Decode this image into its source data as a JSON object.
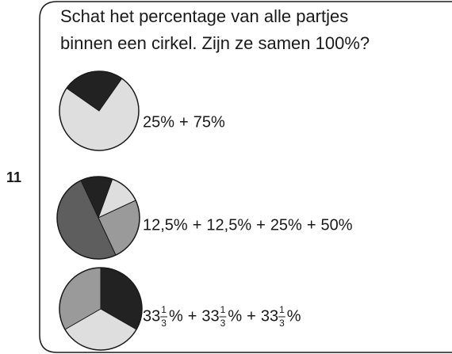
{
  "exercise_number": "11",
  "question": [
    "Schat het percentage van alle partjes",
    "binnen een cirkel. Zijn ze samen 100%?"
  ],
  "operator": "+",
  "pies": [
    {
      "slices": [
        {
          "value": 25,
          "color": "#222222"
        },
        {
          "value": 75,
          "color": "#dedede"
        }
      ],
      "terms": [
        {
          "text": "25%"
        },
        {
          "text": "75%"
        }
      ]
    },
    {
      "slices": [
        {
          "value": 12.5,
          "color": "#222222"
        },
        {
          "value": 12.5,
          "color": "#dedede"
        },
        {
          "value": 25,
          "color": "#9a9a9a"
        },
        {
          "value": 50,
          "color": "#5e5e5e"
        }
      ],
      "terms": [
        {
          "text": "12,5%"
        },
        {
          "text": "12,5%"
        },
        {
          "text": "25%"
        },
        {
          "text": "50%"
        }
      ]
    },
    {
      "slices": [
        {
          "value": 33.33333,
          "color": "#222222"
        },
        {
          "value": 33.33333,
          "color": "#dedede"
        },
        {
          "value": 33.33333,
          "color": "#9a9a9a"
        }
      ],
      "terms": [
        {
          "whole": "33",
          "num": "1",
          "den": "3",
          "unit": "%"
        },
        {
          "whole": "33",
          "num": "1",
          "den": "3",
          "unit": "%"
        },
        {
          "whole": "33",
          "num": "1",
          "den": "3",
          "unit": "%"
        }
      ]
    }
  ]
}
